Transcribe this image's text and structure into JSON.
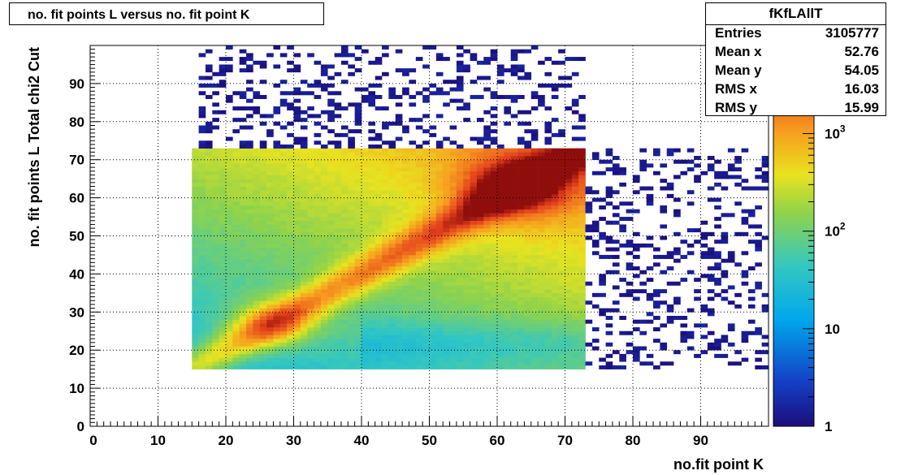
{
  "chart_data": {
    "type": "heatmap",
    "title": "no. fit points L versus no. fit point K",
    "xlabel": "no.fit point K",
    "ylabel": "no. fit points  L   Total chi2 Cut",
    "xlim": [
      0,
      100
    ],
    "ylim": [
      0,
      100
    ],
    "x_ticks": [
      "0",
      "10",
      "20",
      "30",
      "40",
      "50",
      "60",
      "70",
      "80",
      "90"
    ],
    "y_ticks": [
      "0",
      "10",
      "20",
      "30",
      "40",
      "50",
      "60",
      "70",
      "80",
      "90"
    ],
    "z_scale": "log",
    "z_range": [
      1,
      8000
    ],
    "colorbar_ticks": [
      {
        "value": 1,
        "label": "1"
      },
      {
        "value": 10,
        "label": "10"
      },
      {
        "value": 100,
        "label": "10",
        "exponent": "2"
      },
      {
        "value": 1000,
        "label": "10",
        "exponent": "3"
      }
    ],
    "dense_region": {
      "x": [
        15,
        73
      ],
      "y": [
        15,
        73
      ]
    },
    "peaks": [
      {
        "x": 27,
        "y": 27,
        "level": "high"
      },
      {
        "x": 63,
        "y": 63,
        "level": "high"
      },
      {
        "x": 71,
        "y": 71,
        "level": "max"
      }
    ],
    "grid": true
  },
  "stats": {
    "name": "fKfLAllT",
    "rows": [
      {
        "key": "Entries",
        "value": "3105777"
      },
      {
        "key": "Mean x",
        "value": "52.76"
      },
      {
        "key": "Mean y",
        "value": "54.05"
      },
      {
        "key": "RMS x",
        "value": "16.03"
      },
      {
        "key": "RMS y",
        "value": "15.99"
      }
    ]
  }
}
